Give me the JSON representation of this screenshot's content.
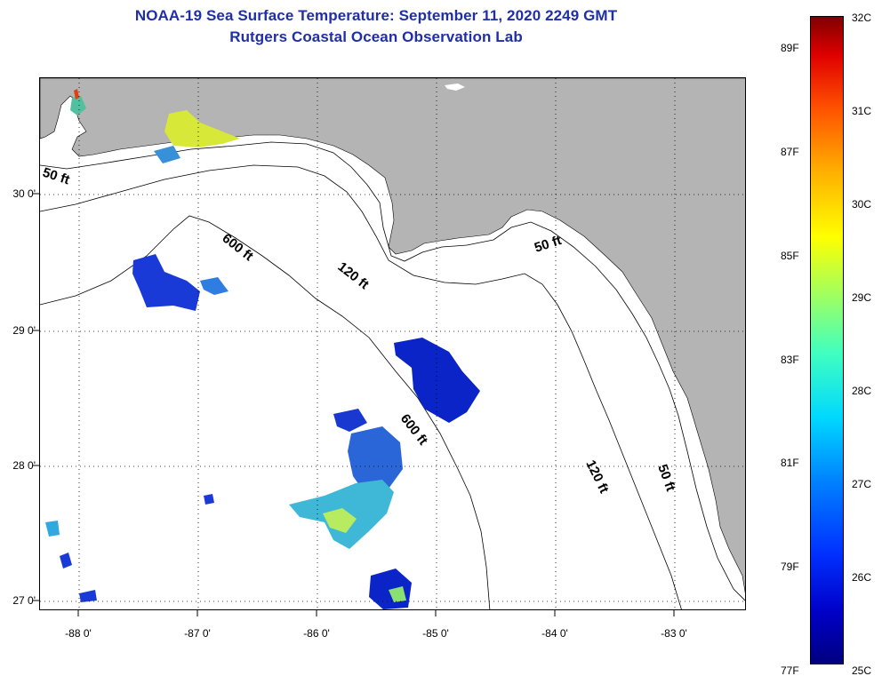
{
  "header": {
    "title_line1": "NOAA-19 Sea Surface Temperature:  September 11, 2020 2249 GMT",
    "title_line2": "Rutgers Coastal Ocean Observation Lab"
  },
  "map": {
    "land_color": "#b4b4b4",
    "ocean_color": "#ffffff",
    "lon_ticks": [
      "-88 0'",
      "-87 0'",
      "-86 0'",
      "-85 0'",
      "-84 0'",
      "-83 0'"
    ],
    "lat_ticks": [
      "30 0'",
      "29 0'",
      "28 0'",
      "27 0'"
    ],
    "contour_labels": [
      "50 ft",
      "600 ft",
      "120 ft",
      "50 ft",
      "600 ft",
      "120 ft",
      "50 ft"
    ]
  },
  "colorbar": {
    "fahrenheit_labels": [
      "89F",
      "87F",
      "85F",
      "83F",
      "81F",
      "79F",
      "77F"
    ],
    "celsius_labels": [
      "32C",
      "31C",
      "30C",
      "29C",
      "28C",
      "27C",
      "26C",
      "25C"
    ],
    "scale_colors": [
      "#000080",
      "#0000ff",
      "#0080ff",
      "#00ffff",
      "#80ff80",
      "#ffff00",
      "#ff8000",
      "#ff0000",
      "#800000"
    ]
  }
}
